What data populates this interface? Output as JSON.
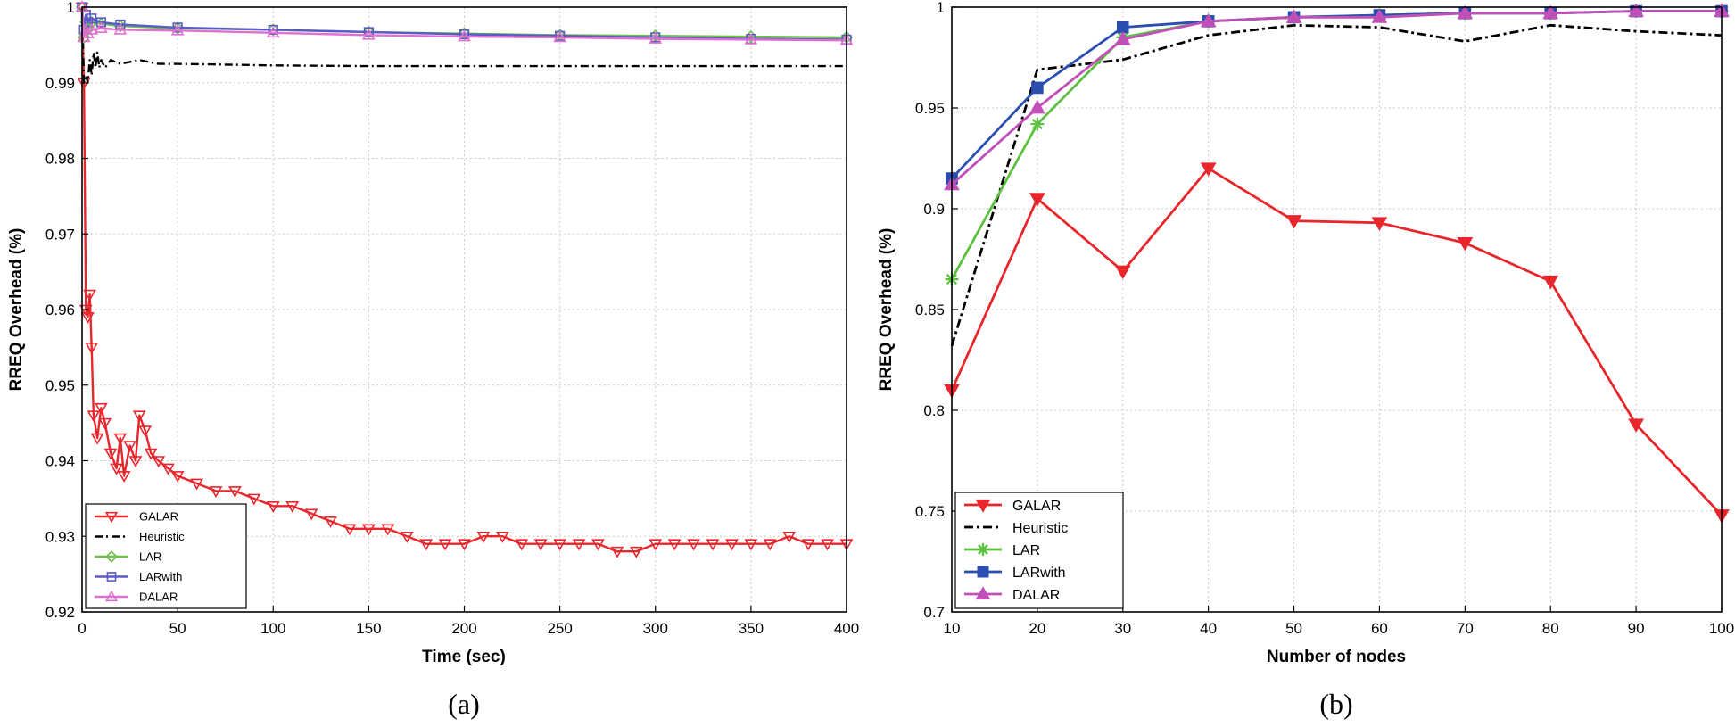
{
  "chart_data": [
    {
      "type": "line",
      "caption": "(a)",
      "xlabel": "Time (sec)",
      "ylabel": "RREQ Overhead (%)",
      "xlim": [
        0,
        400
      ],
      "ylim": [
        0.92,
        1.0
      ],
      "xticks": [
        0,
        50,
        100,
        150,
        200,
        250,
        300,
        350,
        400
      ],
      "yticks": [
        0.92,
        0.93,
        0.94,
        0.95,
        0.96,
        0.97,
        0.98,
        0.99,
        1.0
      ],
      "ytick_labels": [
        "0.92",
        "0.93",
        "0.94",
        "0.95",
        "0.96",
        "0.97",
        "0.98",
        "0.99",
        "1"
      ],
      "xtick_labels": [
        "0",
        "50",
        "100",
        "150",
        "200",
        "250",
        "300",
        "350",
        "400"
      ],
      "grid": true,
      "legend_position": "bottom-left",
      "series": [
        {
          "name": "GALAR",
          "color": "#e8262b",
          "marker": "triangle-down",
          "dash": "",
          "x": [
            0,
            1,
            2,
            3,
            4,
            5,
            6,
            8,
            10,
            12,
            15,
            18,
            20,
            22,
            25,
            28,
            30,
            33,
            36,
            40,
            45,
            50,
            60,
            70,
            80,
            90,
            100,
            110,
            120,
            130,
            140,
            150,
            160,
            170,
            180,
            190,
            200,
            210,
            220,
            230,
            240,
            250,
            260,
            270,
            280,
            290,
            300,
            310,
            320,
            330,
            340,
            350,
            360,
            370,
            380,
            390,
            400
          ],
          "y": [
            1.0,
            0.99,
            0.96,
            0.959,
            0.962,
            0.955,
            0.946,
            0.943,
            0.947,
            0.945,
            0.941,
            0.939,
            0.943,
            0.938,
            0.942,
            0.94,
            0.946,
            0.944,
            0.941,
            0.94,
            0.939,
            0.938,
            0.937,
            0.936,
            0.936,
            0.935,
            0.934,
            0.934,
            0.933,
            0.932,
            0.931,
            0.931,
            0.931,
            0.93,
            0.929,
            0.929,
            0.929,
            0.93,
            0.93,
            0.929,
            0.929,
            0.929,
            0.929,
            0.929,
            0.928,
            0.928,
            0.929,
            0.929,
            0.929,
            0.929,
            0.929,
            0.929,
            0.929,
            0.93,
            0.929,
            0.929,
            0.929
          ]
        },
        {
          "name": "Heuristic",
          "color": "#000000",
          "marker": "none",
          "dash": "9 4 2 4",
          "x": [
            0,
            1,
            2,
            3,
            4,
            5,
            6,
            7,
            8,
            9,
            10,
            12,
            15,
            20,
            30,
            40,
            50,
            75,
            100,
            150,
            200,
            250,
            300,
            350,
            400
          ],
          "y": [
            1.0,
            0.99,
            0.991,
            0.99,
            0.993,
            0.991,
            0.994,
            0.992,
            0.994,
            0.992,
            0.993,
            0.992,
            0.993,
            0.9925,
            0.993,
            0.9925,
            0.9925,
            0.9924,
            0.9923,
            0.9922,
            0.9922,
            0.9922,
            0.9922,
            0.9922,
            0.9922
          ]
        },
        {
          "name": "LAR",
          "color": "#6cc04a",
          "marker": "diamond",
          "dash": "",
          "x": [
            0,
            1,
            2,
            3,
            5,
            10,
            20,
            50,
            100,
            150,
            200,
            250,
            300,
            350,
            400
          ],
          "y": [
            1.0,
            0.996,
            0.998,
            0.997,
            0.998,
            0.9978,
            0.9975,
            0.9972,
            0.997,
            0.9967,
            0.9965,
            0.9963,
            0.9962,
            0.9961,
            0.996
          ]
        },
        {
          "name": "LARwith",
          "color": "#5a5ac8",
          "marker": "square",
          "dash": "",
          "x": [
            0,
            1,
            2,
            3,
            5,
            10,
            20,
            50,
            100,
            150,
            200,
            250,
            300,
            350,
            400
          ],
          "y": [
            1.0,
            0.997,
            0.999,
            0.998,
            0.9985,
            0.998,
            0.9977,
            0.9973,
            0.997,
            0.9967,
            0.9964,
            0.9962,
            0.996,
            0.9958,
            0.9957
          ]
        },
        {
          "name": "DALAR",
          "color": "#e070d0",
          "marker": "triangle-up",
          "dash": "",
          "x": [
            0,
            1,
            2,
            3,
            5,
            10,
            20,
            50,
            100,
            150,
            200,
            250,
            300,
            350,
            400
          ],
          "y": [
            1.0,
            0.996,
            0.997,
            0.9965,
            0.997,
            0.9972,
            0.997,
            0.9969,
            0.9966,
            0.9963,
            0.9961,
            0.996,
            0.9958,
            0.9957,
            0.9956
          ]
        }
      ]
    },
    {
      "type": "line",
      "caption": "(b)",
      "xlabel": "Number of nodes",
      "ylabel": "RREQ Overhead (%)",
      "xlim": [
        10,
        100
      ],
      "ylim": [
        0.7,
        1.0
      ],
      "xticks": [
        10,
        20,
        30,
        40,
        50,
        60,
        70,
        80,
        90,
        100
      ],
      "yticks": [
        0.7,
        0.75,
        0.8,
        0.85,
        0.9,
        0.95,
        1.0
      ],
      "ytick_labels": [
        "0.7",
        "0.75",
        "0.8",
        "0.85",
        "0.9",
        "0.95",
        "1"
      ],
      "xtick_labels": [
        "10",
        "20",
        "30",
        "40",
        "50",
        "60",
        "70",
        "80",
        "90",
        "100"
      ],
      "grid": true,
      "legend_position": "bottom-left",
      "series": [
        {
          "name": "GALAR",
          "color": "#e8262b",
          "marker": "triangle-down",
          "dash": "",
          "x": [
            10,
            20,
            30,
            40,
            50,
            60,
            70,
            80,
            90,
            100
          ],
          "y": [
            0.81,
            0.905,
            0.869,
            0.92,
            0.894,
            0.893,
            0.883,
            0.864,
            0.793,
            0.748
          ]
        },
        {
          "name": "Heuristic",
          "color": "#000000",
          "marker": "none",
          "dash": "10 4 3 4",
          "x": [
            10,
            20,
            30,
            40,
            50,
            60,
            70,
            80,
            90,
            100
          ],
          "y": [
            0.832,
            0.969,
            0.974,
            0.986,
            0.991,
            0.99,
            0.983,
            0.991,
            0.988,
            0.986
          ]
        },
        {
          "name": "LAR",
          "color": "#5cc040",
          "marker": "star",
          "dash": "",
          "x": [
            10,
            20,
            30,
            40,
            50,
            60,
            70,
            80,
            90,
            100
          ],
          "y": [
            0.865,
            0.942,
            0.985,
            0.993,
            0.995,
            0.996,
            0.997,
            0.997,
            0.998,
            0.998
          ]
        },
        {
          "name": "LARwith",
          "color": "#2a4fb0",
          "marker": "square",
          "dash": "",
          "x": [
            10,
            20,
            30,
            40,
            50,
            60,
            70,
            80,
            90,
            100
          ],
          "y": [
            0.915,
            0.96,
            0.99,
            0.993,
            0.995,
            0.996,
            0.997,
            0.997,
            0.998,
            0.998
          ]
        },
        {
          "name": "DALAR",
          "color": "#c050b8",
          "marker": "triangle-up",
          "dash": "",
          "x": [
            10,
            20,
            30,
            40,
            50,
            60,
            70,
            80,
            90,
            100
          ],
          "y": [
            0.912,
            0.95,
            0.984,
            0.993,
            0.995,
            0.995,
            0.997,
            0.997,
            0.998,
            0.998
          ]
        }
      ]
    }
  ]
}
